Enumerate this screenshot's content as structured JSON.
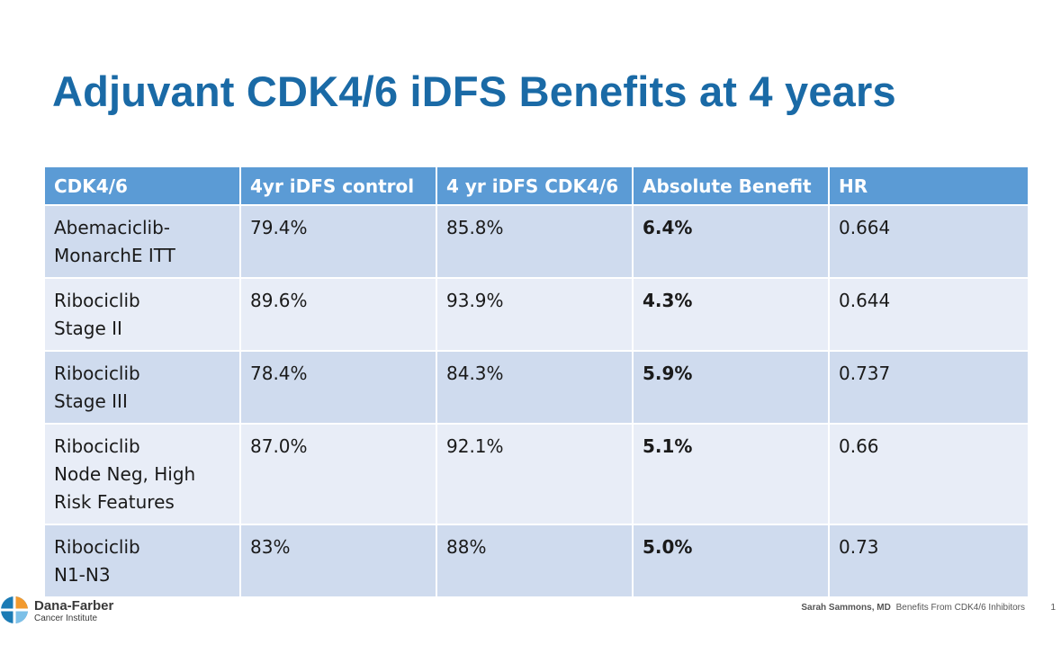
{
  "slide": {
    "title": "Adjuvant CDK4/6 iDFS Benefits at 4 years"
  },
  "table": {
    "headers": [
      "CDK4/6",
      "4yr iDFS control",
      "4 yr iDFS CDK4/6",
      "Absolute Benefit",
      "HR"
    ],
    "rows": [
      {
        "drug": [
          "Abemaciclib-",
          "MonarchE ITT"
        ],
        "control": "79.4%",
        "cdk": "85.8%",
        "benefit": "6.4%",
        "hr": "0.664"
      },
      {
        "drug": [
          "Ribociclib",
          "Stage II"
        ],
        "control": "89.6%",
        "cdk": "93.9%",
        "benefit": "4.3%",
        "hr": "0.644"
      },
      {
        "drug": [
          "Ribociclib",
          "Stage III"
        ],
        "control": "78.4%",
        "cdk": "84.3%",
        "benefit": "5.9%",
        "hr": "0.737"
      },
      {
        "drug": [
          "Ribociclib",
          "Node Neg, High",
          "Risk Features"
        ],
        "control": "87.0%",
        "cdk": "92.1%",
        "benefit": "5.1%",
        "hr": "0.66"
      },
      {
        "drug": [
          "Ribociclib",
          "N1-N3"
        ],
        "control": "83%",
        "cdk": "88%",
        "benefit": "5.0%",
        "hr": "0.73"
      }
    ]
  },
  "logo": {
    "name": "Dana-Farber",
    "subtitle": "Cancer Institute",
    "icon": "dana-farber-logo-icon"
  },
  "footer": {
    "author": "Sarah Sammons, MD",
    "topic": "Benefits From CDK4/6 Inhibitors",
    "page": "1"
  },
  "colors": {
    "title": "#1a6aa6",
    "header_bg": "#5b9bd5",
    "row_odd": "#cfdbee",
    "row_even": "#e8edf7"
  }
}
